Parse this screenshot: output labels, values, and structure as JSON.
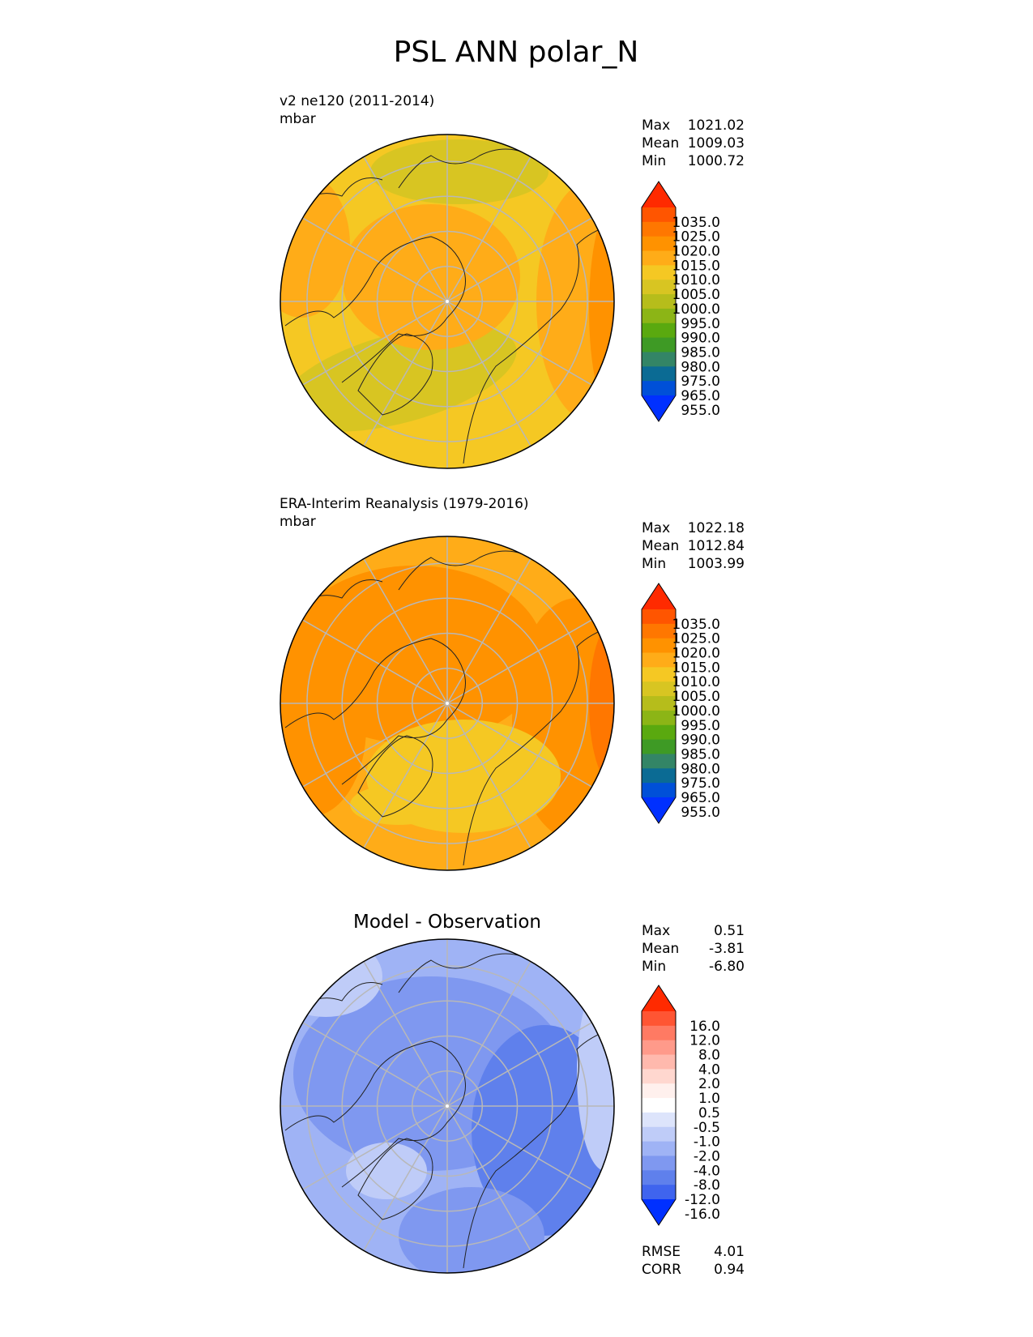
{
  "figure": {
    "title": "PSL ANN polar_N"
  },
  "chart_data": [
    {
      "type": "heatmap",
      "projection": "north polar stereographic",
      "title": "",
      "label": "v2 ne120 (2011-2014)",
      "units": "mbar",
      "stats": [
        {
          "name": "Max",
          "value": "1021.02"
        },
        {
          "name": "Mean",
          "value": "1009.03"
        },
        {
          "name": "Min",
          "value": "1000.72"
        }
      ],
      "colorbar": {
        "levels": [
          "1035.0",
          "1025.0",
          "1020.0",
          "1015.0",
          "1010.0",
          "1005.0",
          "1000.0",
          "995.0",
          "990.0",
          "985.0",
          "980.0",
          "975.0",
          "965.0",
          "955.0"
        ],
        "colors": [
          "#ff2a00",
          "#ff5500",
          "#ff7700",
          "#ff9200",
          "#ffac18",
          "#f5c823",
          "#d8c522",
          "#b6bd1b",
          "#8cb516",
          "#5aa90f",
          "#3e9a25",
          "#338566",
          "#0b6b94",
          "#0050d8",
          "#0030ff"
        ]
      },
      "field_colors": {
        "background": "#f5c823",
        "high": "#ffac18",
        "higher": "#ff9200",
        "low": "#d8c522"
      },
      "grid": true
    },
    {
      "type": "heatmap",
      "projection": "north polar stereographic",
      "title": "",
      "label": "ERA-Interim Reanalysis (1979-2016)",
      "units": "mbar",
      "stats": [
        {
          "name": "Max",
          "value": "1022.18"
        },
        {
          "name": "Mean",
          "value": "1012.84"
        },
        {
          "name": "Min",
          "value": "1003.99"
        }
      ],
      "colorbar": {
        "levels": [
          "1035.0",
          "1025.0",
          "1020.0",
          "1015.0",
          "1010.0",
          "1005.0",
          "1000.0",
          "995.0",
          "990.0",
          "985.0",
          "980.0",
          "975.0",
          "965.0",
          "955.0"
        ],
        "colors": [
          "#ff2a00",
          "#ff5500",
          "#ff7700",
          "#ff9200",
          "#ffac18",
          "#f5c823",
          "#d8c522",
          "#b6bd1b",
          "#8cb516",
          "#5aa90f",
          "#3e9a25",
          "#338566",
          "#0b6b94",
          "#0050d8",
          "#0030ff"
        ]
      },
      "field_colors": {
        "background": "#ffac18",
        "high": "#ff9200",
        "higher": "#ff7700",
        "low": "#f5c823"
      },
      "grid": true
    },
    {
      "type": "heatmap",
      "projection": "north polar stereographic",
      "title": "Model - Observation",
      "label": "",
      "units": "",
      "stats": [
        {
          "name": "Max",
          "value": "0.51"
        },
        {
          "name": "Mean",
          "value": "-3.81"
        },
        {
          "name": "Min",
          "value": "-6.80"
        }
      ],
      "metrics": [
        {
          "name": "RMSE",
          "value": "4.01"
        },
        {
          "name": "CORR",
          "value": "0.94"
        }
      ],
      "colorbar": {
        "levels": [
          "16.0",
          "12.0",
          "8.0",
          "4.0",
          "2.0",
          "1.0",
          "0.5",
          "-0.5",
          "-1.0",
          "-2.0",
          "-4.0",
          "-8.0",
          "-12.0",
          "-16.0"
        ],
        "colors": [
          "#ff2a00",
          "#ff5533",
          "#ff7a63",
          "#ff9a8a",
          "#ffb9ad",
          "#ffd7cf",
          "#fff0ed",
          "#ffffff",
          "#dde4fb",
          "#bfccf8",
          "#9fb3f5",
          "#7f98f0",
          "#5f80ec",
          "#3f64ee",
          "#0030ff"
        ]
      },
      "field_colors": {
        "background": "#9fb3f5",
        "high": "#bfccf8",
        "low": "#7f98f0",
        "lower": "#5f80ec"
      },
      "grid": true
    }
  ]
}
